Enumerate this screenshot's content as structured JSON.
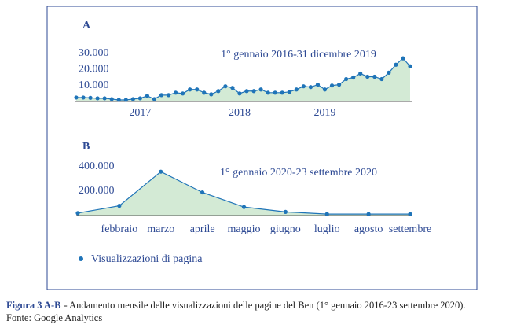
{
  "chart_data": [
    {
      "type": "area",
      "title": "A",
      "annotation": "1° gennaio 2016-31 dicembre 2019",
      "categories": [
        null,
        null,
        null,
        null,
        null,
        null,
        null,
        null,
        null,
        "2017",
        null,
        null,
        null,
        null,
        null,
        null,
        null,
        null,
        null,
        null,
        null,
        null,
        null,
        "2018",
        null,
        null,
        null,
        null,
        null,
        null,
        null,
        null,
        null,
        null,
        null,
        "2019",
        null,
        null,
        null,
        null,
        null,
        null,
        null,
        null,
        null,
        null,
        null,
        null
      ],
      "values": [
        2500,
        2500,
        2300,
        2000,
        2000,
        1500,
        1000,
        1000,
        1500,
        2000,
        3500,
        1500,
        4000,
        4000,
        5500,
        5000,
        7500,
        7500,
        5500,
        4500,
        6500,
        9500,
        8500,
        5000,
        6500,
        6500,
        7500,
        5500,
        5500,
        5500,
        6000,
        7500,
        9500,
        9000,
        10500,
        7500,
        10000,
        10500,
        14000,
        15000,
        17500,
        15500,
        15500,
        14000,
        18000,
        23000,
        27000,
        22000
      ],
      "color": "#1f74b8",
      "fill": "#d3ead5",
      "ylim": [
        0,
        30000
      ],
      "yticks": [
        {
          "value": 10000,
          "label": "10.000"
        },
        {
          "value": 20000,
          "label": "20.000"
        },
        {
          "value": 30000,
          "label": "30.000"
        }
      ]
    },
    {
      "type": "area",
      "title": "B",
      "annotation": "1° gennaio 2020-23 settembre 2020",
      "categories": [
        null,
        "febbraio",
        "marzo",
        "aprile",
        "maggio",
        "giugno",
        "luglio",
        "agosto",
        "settembre"
      ],
      "series": [
        {
          "name": "Visualizzazioni di pagina",
          "color": "#1f74b8",
          "values": [
            20000,
            80000,
            360000,
            190000,
            70000,
            30000,
            12000,
            12000,
            12000
          ]
        }
      ],
      "fill": "#d3ead5",
      "ylim": [
        0,
        400000
      ],
      "yticks": [
        {
          "value": 200000,
          "label": "200.000"
        },
        {
          "value": 400000,
          "label": "400.000"
        }
      ]
    }
  ],
  "caption": {
    "label": "Figura 3 A-B",
    "text": "- Andamento mensile delle visualizzazioni delle pagine del Ben (1° gennaio 2016-23 settembre 2020).",
    "source": "Fonte: Google Analytics"
  }
}
